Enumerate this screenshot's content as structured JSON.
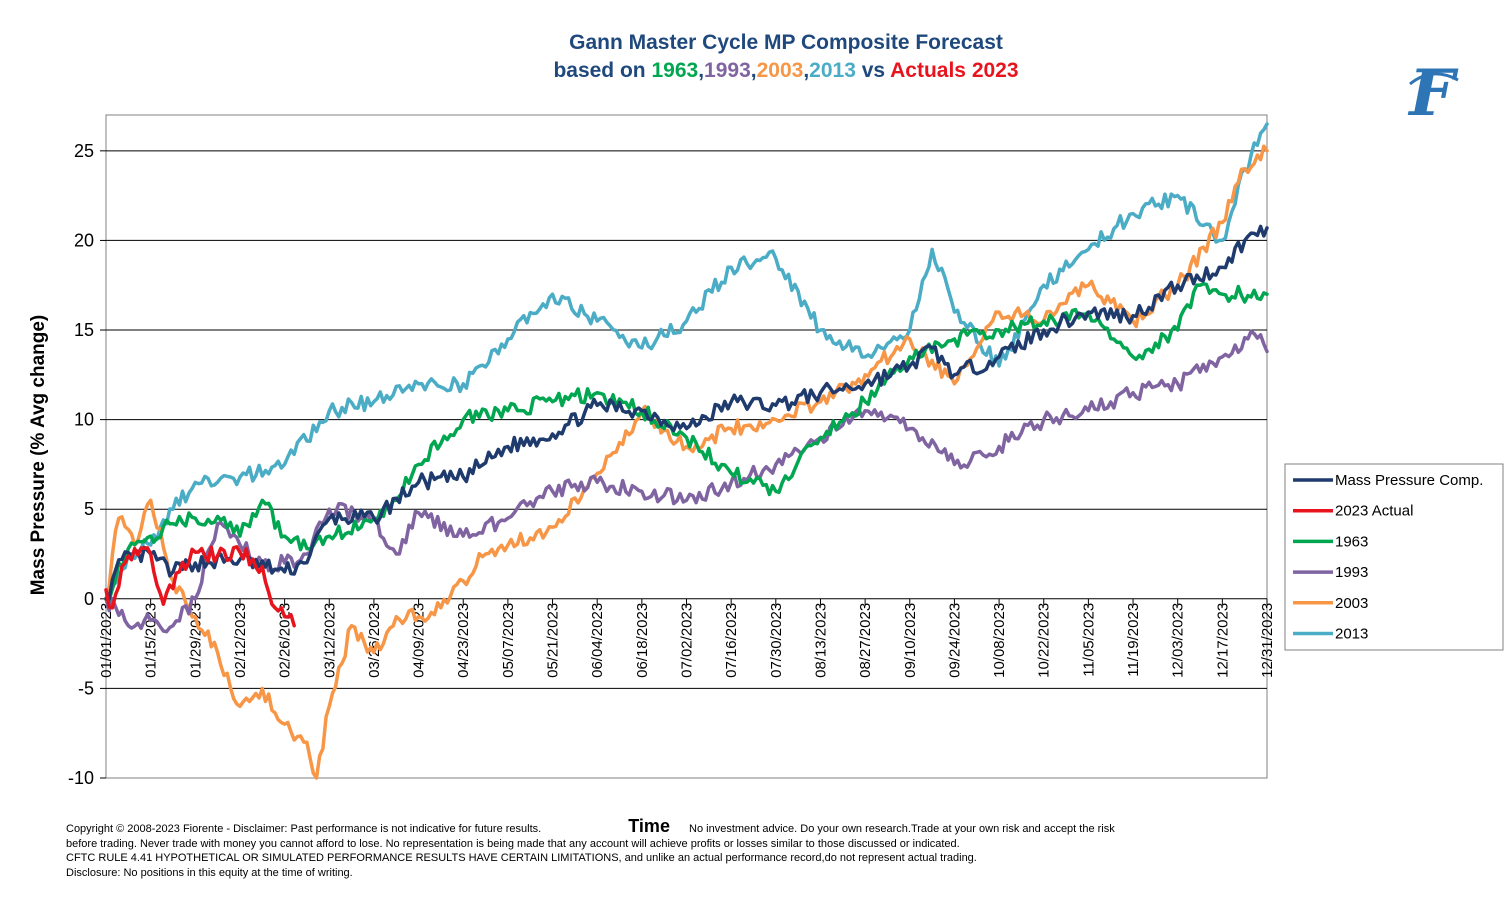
{
  "chart_data": {
    "type": "line",
    "title": {
      "line1": "Gann Master Cycle MP Composite Forecast",
      "parts": [
        {
          "text": "based on ",
          "color": "#1F497D"
        },
        {
          "text": "1963",
          "color": "#00A650"
        },
        {
          "text": ",",
          "color": "#1F497D"
        },
        {
          "text": "1993",
          "color": "#8064A2"
        },
        {
          "text": ",",
          "color": "#1F497D"
        },
        {
          "text": "2003",
          "color": "#F79646"
        },
        {
          "text": ",",
          "color": "#1F497D"
        },
        {
          "text": "2013",
          "color": "#4BACC6"
        },
        {
          "text": " vs ",
          "color": "#1F497D"
        },
        {
          "text": "Actuals 2023",
          "color": "#E8141D"
        }
      ]
    },
    "xlabel": "Time",
    "ylabel": "Mass Pressure (% Avg change)",
    "ylim": [
      -10,
      27
    ],
    "yticks": [
      -10,
      -5,
      0,
      5,
      10,
      15,
      20,
      25
    ],
    "ytick_labels": [
      "-10",
      "-5",
      "0",
      "5",
      "10",
      "15",
      "20",
      "25"
    ],
    "x_start": "01/01/2023",
    "x_end": "12/31/2023",
    "x_tick_labels": [
      "01/01/2023",
      "01/15/2023",
      "01/29/2023",
      "02/12/2023",
      "02/26/2023",
      "03/12/2023",
      "03/26/2023",
      "04/09/2023",
      "04/23/2023",
      "05/07/2023",
      "05/21/2023",
      "06/04/2023",
      "06/18/2023",
      "07/02/2023",
      "07/16/2023",
      "07/30/2023",
      "08/13/2023",
      "08/27/2023",
      "09/10/2023",
      "09/24/2023",
      "10/08/2023",
      "10/22/2023",
      "11/05/2023",
      "11/19/2023",
      "12/03/2023",
      "12/17/2023",
      "12/31/2023"
    ],
    "grid": "horizontal",
    "legend_position": "right",
    "series": [
      {
        "name": "Mass Pressure Comp.",
        "color": "#1F3B6E",
        "points": [
          [
            "01/01/2023",
            0
          ],
          [
            "01/06/2023",
            2.2
          ],
          [
            "01/15/2023",
            2.5
          ],
          [
            "01/22/2023",
            1.5
          ],
          [
            "01/29/2023",
            2
          ],
          [
            "02/12/2023",
            2.2
          ],
          [
            "02/26/2023",
            1.5
          ],
          [
            "03/04/2023",
            2
          ],
          [
            "03/12/2023",
            4.5
          ],
          [
            "03/26/2023",
            4.5
          ],
          [
            "04/09/2023",
            6.5
          ],
          [
            "04/23/2023",
            6.8
          ],
          [
            "05/07/2023",
            8.5
          ],
          [
            "05/21/2023",
            9.2
          ],
          [
            "06/04/2023",
            10.8
          ],
          [
            "06/18/2023",
            10.5
          ],
          [
            "07/02/2023",
            9.5
          ],
          [
            "07/16/2023",
            11
          ],
          [
            "07/30/2023",
            10.8
          ],
          [
            "08/13/2023",
            11.5
          ],
          [
            "08/27/2023",
            12
          ],
          [
            "09/10/2023",
            13
          ],
          [
            "09/17/2023",
            14
          ],
          [
            "09/24/2023",
            12.5
          ],
          [
            "10/08/2023",
            13.5
          ],
          [
            "10/22/2023",
            15
          ],
          [
            "11/05/2023",
            16
          ],
          [
            "11/19/2023",
            15.8
          ],
          [
            "12/03/2023",
            17.5
          ],
          [
            "12/17/2023",
            18.5
          ],
          [
            "12/24/2023",
            20
          ],
          [
            "12/31/2023",
            20.7
          ]
        ]
      },
      {
        "name": "2023 Actual",
        "color": "#E8141D",
        "points": [
          [
            "01/01/2023",
            0.5
          ],
          [
            "01/03/2023",
            -0.5
          ],
          [
            "01/06/2023",
            1.8
          ],
          [
            "01/10/2023",
            2.8
          ],
          [
            "01/15/2023",
            2.5
          ],
          [
            "01/19/2023",
            -0.3
          ],
          [
            "01/24/2023",
            1.5
          ],
          [
            "01/29/2023",
            2.6
          ],
          [
            "02/05/2023",
            2.4
          ],
          [
            "02/12/2023",
            2.6
          ],
          [
            "02/19/2023",
            1.8
          ],
          [
            "02/23/2023",
            -0.5
          ],
          [
            "02/26/2023",
            -1
          ],
          [
            "03/01/2023",
            -1.5
          ]
        ]
      },
      {
        "name": "1963",
        "color": "#00A650",
        "points": [
          [
            "01/01/2023",
            0
          ],
          [
            "01/08/2023",
            2.8
          ],
          [
            "01/15/2023",
            3.5
          ],
          [
            "01/22/2023",
            4.2
          ],
          [
            "01/29/2023",
            4.5
          ],
          [
            "02/05/2023",
            4.6
          ],
          [
            "02/12/2023",
            3.5
          ],
          [
            "02/19/2023",
            5.5
          ],
          [
            "02/26/2023",
            3.5
          ],
          [
            "03/05/2023",
            2.8
          ],
          [
            "03/12/2023",
            3.5
          ],
          [
            "03/26/2023",
            4.5
          ],
          [
            "04/02/2023",
            5.5
          ],
          [
            "04/09/2023",
            7.5
          ],
          [
            "04/23/2023",
            10
          ],
          [
            "05/07/2023",
            10.5
          ],
          [
            "05/21/2023",
            11
          ],
          [
            "06/04/2023",
            11.5
          ],
          [
            "06/18/2023",
            10.5
          ],
          [
            "07/02/2023",
            9
          ],
          [
            "07/16/2023",
            7
          ],
          [
            "07/30/2023",
            6
          ],
          [
            "08/13/2023",
            9
          ],
          [
            "08/27/2023",
            11
          ],
          [
            "09/10/2023",
            13.5
          ],
          [
            "09/24/2023",
            14.5
          ],
          [
            "10/08/2023",
            15
          ],
          [
            "10/22/2023",
            15.5
          ],
          [
            "11/05/2023",
            16
          ],
          [
            "11/19/2023",
            13.5
          ],
          [
            "12/03/2023",
            15
          ],
          [
            "12/10/2023",
            17.5
          ],
          [
            "12/17/2023",
            17
          ],
          [
            "12/31/2023",
            17
          ]
        ]
      },
      {
        "name": "1993",
        "color": "#8064A2",
        "points": [
          [
            "01/01/2023",
            0
          ],
          [
            "01/08/2023",
            -1.5
          ],
          [
            "01/15/2023",
            -1.2
          ],
          [
            "01/22/2023",
            -1.5
          ],
          [
            "01/29/2023",
            0
          ],
          [
            "02/05/2023",
            4.2
          ],
          [
            "02/12/2023",
            3
          ],
          [
            "02/19/2023",
            2
          ],
          [
            "02/26/2023",
            2
          ],
          [
            "03/05/2023",
            2.5
          ],
          [
            "03/12/2023",
            5
          ],
          [
            "03/26/2023",
            4.5
          ],
          [
            "04/02/2023",
            2.5
          ],
          [
            "04/09/2023",
            4.8
          ],
          [
            "04/23/2023",
            3.5
          ],
          [
            "05/07/2023",
            4.5
          ],
          [
            "05/21/2023",
            6
          ],
          [
            "06/04/2023",
            6.5
          ],
          [
            "06/18/2023",
            6
          ],
          [
            "07/02/2023",
            5.5
          ],
          [
            "07/16/2023",
            6.5
          ],
          [
            "07/30/2023",
            7.5
          ],
          [
            "08/13/2023",
            9
          ],
          [
            "08/27/2023",
            10.5
          ],
          [
            "09/10/2023",
            9.5
          ],
          [
            "09/24/2023",
            7.5
          ],
          [
            "10/08/2023",
            8.5
          ],
          [
            "10/22/2023",
            10
          ],
          [
            "11/05/2023",
            10.5
          ],
          [
            "11/19/2023",
            11.5
          ],
          [
            "12/03/2023",
            12
          ],
          [
            "12/17/2023",
            13.5
          ],
          [
            "12/27/2023",
            14.8
          ],
          [
            "12/31/2023",
            13.8
          ]
        ]
      },
      {
        "name": "2003",
        "color": "#F79646",
        "points": [
          [
            "01/01/2023",
            0
          ],
          [
            "01/05/2023",
            4.5
          ],
          [
            "01/10/2023",
            3
          ],
          [
            "01/15/2023",
            5.5
          ],
          [
            "01/22/2023",
            1
          ],
          [
            "01/29/2023",
            -1
          ],
          [
            "02/05/2023",
            -3
          ],
          [
            "02/12/2023",
            -6
          ],
          [
            "02/19/2023",
            -5
          ],
          [
            "02/26/2023",
            -7
          ],
          [
            "03/05/2023",
            -8
          ],
          [
            "03/08/2023",
            -10
          ],
          [
            "03/12/2023",
            -6
          ],
          [
            "03/19/2023",
            -1.5
          ],
          [
            "03/26/2023",
            -3
          ],
          [
            "04/02/2023",
            -1
          ],
          [
            "04/09/2023",
            -1
          ],
          [
            "04/16/2023",
            -0.5
          ],
          [
            "04/23/2023",
            1
          ],
          [
            "04/30/2023",
            2.5
          ],
          [
            "05/07/2023",
            3
          ],
          [
            "05/21/2023",
            4
          ],
          [
            "06/04/2023",
            7
          ],
          [
            "06/18/2023",
            10.5
          ],
          [
            "07/02/2023",
            8.5
          ],
          [
            "07/16/2023",
            9.5
          ],
          [
            "07/30/2023",
            10
          ],
          [
            "08/13/2023",
            11
          ],
          [
            "08/27/2023",
            12.5
          ],
          [
            "09/10/2023",
            14.5
          ],
          [
            "09/24/2023",
            12
          ],
          [
            "10/08/2023",
            16
          ],
          [
            "10/22/2023",
            15.5
          ],
          [
            "11/05/2023",
            17.5
          ],
          [
            "11/19/2023",
            15.5
          ],
          [
            "12/03/2023",
            17.5
          ],
          [
            "12/17/2023",
            21
          ],
          [
            "12/24/2023",
            24
          ],
          [
            "12/31/2023",
            25
          ]
        ]
      },
      {
        "name": "2013",
        "color": "#4BACC6",
        "points": [
          [
            "01/01/2023",
            0
          ],
          [
            "01/08/2023",
            2.5
          ],
          [
            "01/15/2023",
            3
          ],
          [
            "01/22/2023",
            5
          ],
          [
            "01/29/2023",
            6.5
          ],
          [
            "02/12/2023",
            6.8
          ],
          [
            "02/26/2023",
            7.5
          ],
          [
            "03/12/2023",
            10.5
          ],
          [
            "03/26/2023",
            11
          ],
          [
            "04/09/2023",
            12
          ],
          [
            "04/23/2023",
            12
          ],
          [
            "05/07/2023",
            14.5
          ],
          [
            "05/21/2023",
            17
          ],
          [
            "06/04/2023",
            15.5
          ],
          [
            "06/18/2023",
            14
          ],
          [
            "07/02/2023",
            15.5
          ],
          [
            "07/16/2023",
            18.5
          ],
          [
            "07/30/2023",
            19
          ],
          [
            "08/13/2023",
            15
          ],
          [
            "08/27/2023",
            13.5
          ],
          [
            "09/10/2023",
            15
          ],
          [
            "09/17/2023",
            19.5
          ],
          [
            "09/24/2023",
            16
          ],
          [
            "10/08/2023",
            13
          ],
          [
            "10/22/2023",
            17.5
          ],
          [
            "11/05/2023",
            19.5
          ],
          [
            "11/19/2023",
            21.5
          ],
          [
            "12/03/2023",
            22.5
          ],
          [
            "12/17/2023",
            20
          ],
          [
            "12/24/2023",
            24
          ],
          [
            "12/31/2023",
            26.5
          ]
        ]
      }
    ]
  },
  "logo": {
    "glyph": "F",
    "color": "#2E75B6"
  },
  "footer": {
    "line1_left": "Copyright © 2008-2023 Fiorente -  Disclaimer: Past performance is not indicative for future results.",
    "line1_right": "No investment advice. Do your own research.Trade at your own risk and accept the risk",
    "line2": "before trading. Never trade with money you cannot afford to lose. No representation is being made that any account will achieve profits or losses similar to those discussed or indicated.",
    "line3": "CFTC RULE 4.41 HYPOTHETICAL OR SIMULATED PERFORMANCE RESULTS HAVE CERTAIN LIMITATIONS, and unlike an actual performance record,do not represent actual trading.",
    "line4": "Disclosure: No positions in this equity at the time of writing."
  }
}
